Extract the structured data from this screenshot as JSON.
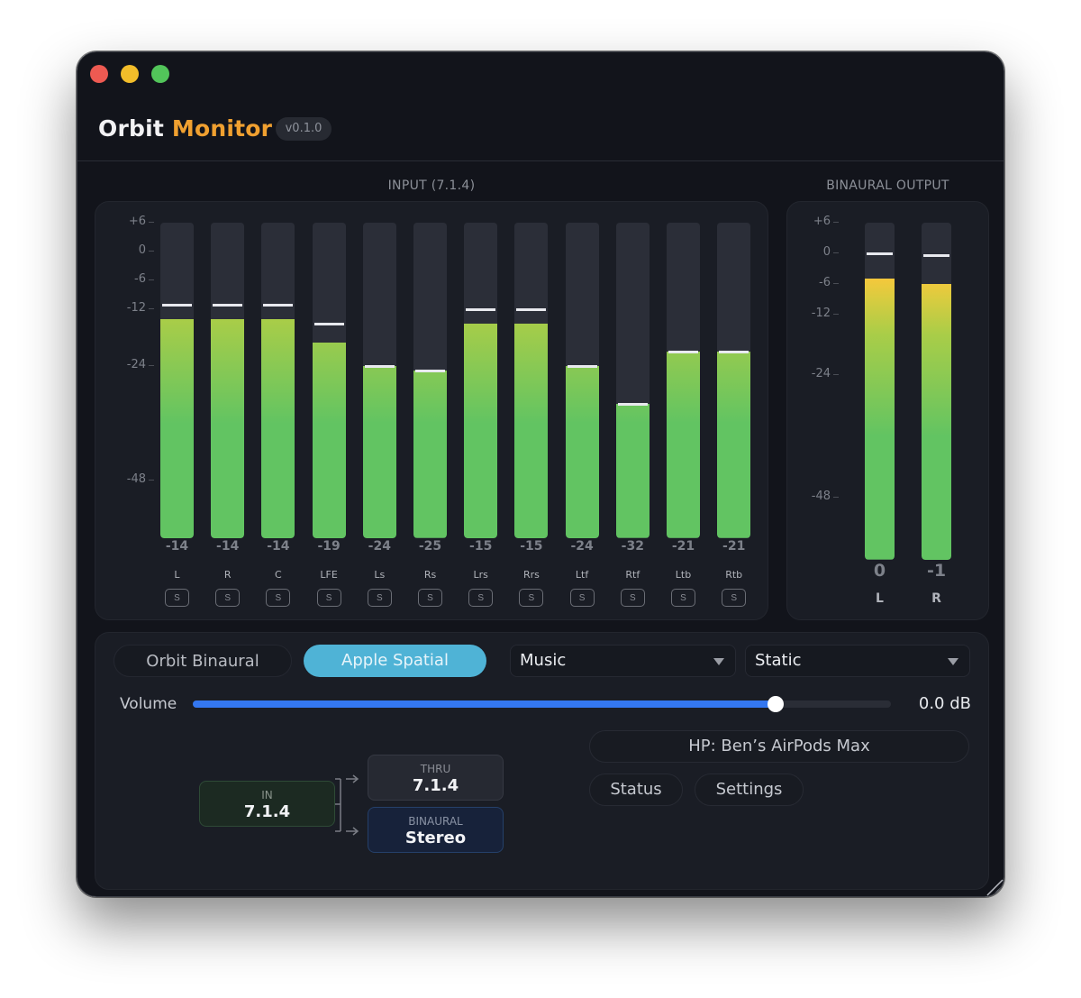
{
  "window": {
    "traffic_lights": [
      {
        "name": "close",
        "color": "#ee5a52"
      },
      {
        "name": "minimize",
        "color": "#f2bd2a"
      },
      {
        "name": "zoom",
        "color": "#52c55a"
      }
    ]
  },
  "header": {
    "title_primary": "Orbit",
    "title_accent": "Monitor",
    "version": "v0.1.0",
    "accent_color": "#f0a030"
  },
  "input_section": {
    "label": "INPUT (7.1.4)",
    "scale": [
      "+6",
      "0",
      "-6",
      "-12",
      "-24",
      "-48"
    ],
    "channels": [
      {
        "name": "L",
        "level_db": -14,
        "peak_db": -11,
        "value": "-14",
        "solo": "S"
      },
      {
        "name": "R",
        "level_db": -14,
        "peak_db": -11,
        "value": "-14",
        "solo": "S"
      },
      {
        "name": "C",
        "level_db": -14,
        "peak_db": -11,
        "value": "-14",
        "solo": "S"
      },
      {
        "name": "LFE",
        "level_db": -19,
        "peak_db": -15,
        "value": "-19",
        "solo": "S"
      },
      {
        "name": "Ls",
        "level_db": -24,
        "peak_db": -24,
        "value": "-24",
        "solo": "S"
      },
      {
        "name": "Rs",
        "level_db": -25,
        "peak_db": -25,
        "value": "-25",
        "solo": "S"
      },
      {
        "name": "Lrs",
        "level_db": -15,
        "peak_db": -12,
        "value": "-15",
        "solo": "S"
      },
      {
        "name": "Rrs",
        "level_db": -15,
        "peak_db": -12,
        "value": "-15",
        "solo": "S"
      },
      {
        "name": "Ltf",
        "level_db": -24,
        "peak_db": -24,
        "value": "-24",
        "solo": "S"
      },
      {
        "name": "Rtf",
        "level_db": -32,
        "peak_db": -32,
        "value": "-32",
        "solo": "S"
      },
      {
        "name": "Ltb",
        "level_db": -21,
        "peak_db": -21,
        "value": "-21",
        "solo": "S"
      },
      {
        "name": "Rtb",
        "level_db": -21,
        "peak_db": -21,
        "value": "-21",
        "solo": "S"
      }
    ]
  },
  "output_section": {
    "label": "BINAURAL OUTPUT",
    "scale": [
      "+6",
      "0",
      "-6",
      "-12",
      "-24",
      "-48"
    ],
    "channels": [
      {
        "name": "L",
        "value": "0"
      },
      {
        "name": "R",
        "value": "-1"
      }
    ]
  },
  "controls": {
    "renderer_options": [
      {
        "label": "Orbit Binaural",
        "selected": false
      },
      {
        "label": "Apple Spatial",
        "selected": true
      }
    ],
    "content_type": {
      "selected": "Music"
    },
    "head_tracking": {
      "selected": "Static"
    },
    "volume": {
      "label": "Volume",
      "value": "0.0 dB",
      "percent": 83.5
    },
    "headphones": "HP: Ben’s AirPods Max",
    "status_button": "Status",
    "settings_button": "Settings",
    "routing": {
      "in": {
        "label": "IN",
        "value": "7.1.4"
      },
      "thru": {
        "label": "THRU",
        "value": "7.1.4"
      },
      "binaural": {
        "label": "BINAURAL",
        "value": "Stereo"
      }
    }
  },
  "colors": {
    "window_bg": "#12141b",
    "panel_bg": "#1a1d25",
    "meter_green": "#62c462",
    "meter_yellow": "#f2c93a",
    "selected_pill": "#4fb3d6",
    "volume_blue": "#3477f0"
  }
}
